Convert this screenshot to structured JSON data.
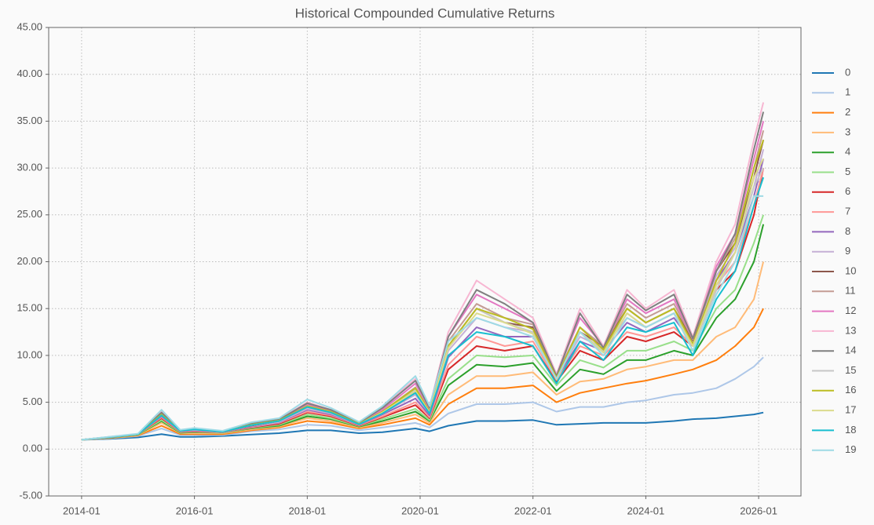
{
  "chart_data": {
    "type": "line",
    "title": "Historical Compounded Cumulative Returns",
    "x": [
      "2014-01",
      "2014-07",
      "2015-01",
      "2015-06",
      "2015-10",
      "2016-01",
      "2016-07",
      "2017-01",
      "2017-07",
      "2018-01",
      "2018-06",
      "2018-12",
      "2019-05",
      "2019-12",
      "2020-03",
      "2020-07",
      "2021-01",
      "2021-07",
      "2022-01",
      "2022-06",
      "2022-11",
      "2023-04",
      "2023-09",
      "2024-01",
      "2024-07",
      "2024-11",
      "2025-04",
      "2025-08",
      "2025-12",
      "2026-02"
    ],
    "series": [
      {
        "name": "0",
        "color": "#1f77b4",
        "values": [
          1.0,
          1.1,
          1.25,
          1.6,
          1.3,
          1.3,
          1.4,
          1.55,
          1.7,
          2.0,
          2.0,
          1.7,
          1.8,
          2.2,
          1.9,
          2.5,
          3.0,
          3.0,
          3.1,
          2.6,
          2.7,
          2.8,
          2.8,
          2.8,
          3.0,
          3.2,
          3.3,
          3.5,
          3.7,
          3.9
        ]
      },
      {
        "name": "1",
        "color": "#aec7e8",
        "values": [
          1.0,
          1.15,
          1.4,
          2.2,
          1.5,
          1.5,
          1.5,
          1.9,
          2.1,
          2.6,
          2.5,
          2.0,
          2.3,
          2.8,
          2.3,
          3.8,
          4.8,
          4.8,
          5.0,
          4.0,
          4.5,
          4.5,
          5.0,
          5.2,
          5.8,
          6.0,
          6.5,
          7.5,
          8.8,
          9.8
        ]
      },
      {
        "name": "2",
        "color": "#ff7f0e",
        "values": [
          1.0,
          1.18,
          1.45,
          2.5,
          1.6,
          1.6,
          1.6,
          2.0,
          2.3,
          3.0,
          2.8,
          2.2,
          2.6,
          3.3,
          2.6,
          4.8,
          6.5,
          6.5,
          6.8,
          5.0,
          6.0,
          6.5,
          7.0,
          7.3,
          8.0,
          8.5,
          9.5,
          11,
          13,
          15
        ]
      },
      {
        "name": "3",
        "color": "#ffbb78",
        "values": [
          1.0,
          1.2,
          1.5,
          2.8,
          1.7,
          1.7,
          1.7,
          2.1,
          2.4,
          3.3,
          3.0,
          2.3,
          2.8,
          3.7,
          2.8,
          5.8,
          7.8,
          7.8,
          8.2,
          5.8,
          7.2,
          7.5,
          8.5,
          8.8,
          9.5,
          9.5,
          12,
          13,
          16,
          20
        ]
      },
      {
        "name": "4",
        "color": "#2ca02c",
        "values": [
          1.0,
          1.22,
          1.55,
          3.0,
          1.75,
          1.8,
          1.75,
          2.2,
          2.5,
          3.5,
          3.2,
          2.4,
          3.0,
          4.0,
          3.0,
          6.8,
          9.0,
          8.8,
          9.2,
          6.2,
          8.5,
          8.0,
          9.5,
          9.5,
          10.5,
          10,
          14,
          16,
          20,
          24
        ]
      },
      {
        "name": "5",
        "color": "#98df8a",
        "values": [
          1.0,
          1.24,
          1.58,
          3.1,
          1.8,
          1.85,
          1.75,
          2.25,
          2.6,
          3.7,
          3.3,
          2.45,
          3.2,
          4.3,
          3.1,
          7.5,
          10,
          9.8,
          10,
          6.8,
          9.5,
          8.7,
          10.5,
          10.5,
          11.5,
          10.5,
          15,
          17,
          22,
          25
        ]
      },
      {
        "name": "6",
        "color": "#d62728",
        "values": [
          1.0,
          1.25,
          1.6,
          3.3,
          1.85,
          1.9,
          1.8,
          2.3,
          2.7,
          3.9,
          3.5,
          2.5,
          3.4,
          4.7,
          3.3,
          8.5,
          11,
          10.5,
          11,
          7.2,
          10.5,
          9.5,
          12,
          11.5,
          12.5,
          11,
          17,
          19,
          25,
          30
        ]
      },
      {
        "name": "7",
        "color": "#ff9896",
        "values": [
          1.0,
          1.26,
          1.6,
          3.4,
          1.87,
          1.95,
          1.8,
          2.35,
          2.8,
          4.0,
          3.6,
          2.55,
          3.5,
          5.0,
          3.4,
          9.0,
          12,
          11,
          11.5,
          7.4,
          11,
          10,
          12.5,
          12,
          13,
          11,
          17.5,
          20,
          26,
          30
        ]
      },
      {
        "name": "8",
        "color": "#9467bd",
        "values": [
          1.0,
          1.27,
          1.6,
          3.5,
          1.9,
          2.0,
          1.82,
          2.4,
          2.85,
          4.2,
          3.7,
          2.6,
          3.7,
          5.4,
          3.6,
          9.8,
          13,
          12,
          12,
          7.6,
          11.5,
          10.5,
          13.5,
          12.5,
          14,
          11.3,
          18,
          21,
          27,
          31
        ]
      },
      {
        "name": "9",
        "color": "#c5b0d5",
        "values": [
          1.0,
          1.27,
          1.6,
          3.6,
          1.92,
          2.05,
          1.84,
          2.45,
          2.9,
          4.3,
          3.8,
          2.62,
          3.8,
          5.8,
          3.8,
          10.5,
          14,
          13,
          12.5,
          7.7,
          12,
          10.8,
          14,
          13,
          14.5,
          11.5,
          18.5,
          21.5,
          28,
          32
        ]
      },
      {
        "name": "10",
        "color": "#8c564b",
        "values": [
          1.0,
          1.28,
          1.6,
          3.7,
          1.94,
          2.1,
          1.86,
          2.5,
          3.0,
          4.5,
          3.9,
          2.65,
          3.9,
          6.2,
          3.9,
          11,
          15,
          13.5,
          13,
          7.8,
          12.5,
          11,
          15,
          13.5,
          15,
          11.6,
          19,
          22,
          29,
          33
        ]
      },
      {
        "name": "11",
        "color": "#c49c94",
        "values": [
          1.0,
          1.29,
          1.6,
          3.8,
          1.96,
          2.12,
          1.87,
          2.55,
          3.05,
          4.6,
          4.0,
          2.7,
          4.0,
          6.6,
          4.1,
          11.5,
          15.5,
          14,
          13.3,
          7.9,
          13,
          11,
          15.5,
          14,
          15.5,
          11.7,
          19,
          22.5,
          30,
          34
        ]
      },
      {
        "name": "12",
        "color": "#e377c2",
        "values": [
          1.0,
          1.3,
          1.6,
          3.9,
          1.98,
          2.15,
          1.88,
          2.65,
          3.1,
          4.8,
          4.1,
          2.75,
          4.2,
          7.0,
          4.3,
          12,
          16.5,
          15,
          13.5,
          8,
          14,
          11,
          16,
          14.5,
          16,
          11.8,
          19.5,
          23,
          31,
          35
        ]
      },
      {
        "name": "13",
        "color": "#f7b6d2",
        "values": [
          1.0,
          1.3,
          1.6,
          4.0,
          2.0,
          2.2,
          1.9,
          2.8,
          3.2,
          5.0,
          4.2,
          2.8,
          4.5,
          7.5,
          4.5,
          12.5,
          18,
          16,
          14,
          8,
          15,
          11,
          17,
          15,
          17,
          12,
          20,
          24,
          33,
          37
        ]
      },
      {
        "name": "14",
        "color": "#7f7f7f",
        "values": [
          1.0,
          1.3,
          1.6,
          3.9,
          2.0,
          2.2,
          1.9,
          2.75,
          3.15,
          4.9,
          4.2,
          2.8,
          4.4,
          7.3,
          4.4,
          12,
          17,
          15.5,
          13.5,
          7.8,
          14.5,
          10.8,
          16.5,
          14.8,
          16.5,
          11.8,
          19,
          23,
          32,
          36
        ]
      },
      {
        "name": "15",
        "color": "#c7c7c7",
        "values": [
          1.0,
          1.28,
          1.6,
          3.6,
          1.95,
          2.1,
          1.85,
          2.55,
          3.0,
          4.5,
          3.9,
          2.65,
          3.9,
          6.3,
          3.9,
          11,
          15,
          13.5,
          12.5,
          7.5,
          12.5,
          10.5,
          14.5,
          13,
          14.5,
          11,
          17,
          21,
          28,
          30
        ]
      },
      {
        "name": "16",
        "color": "#bcbd22",
        "values": [
          1.0,
          1.29,
          1.6,
          3.7,
          1.96,
          2.12,
          1.86,
          2.6,
          3.05,
          4.6,
          4.0,
          2.7,
          4.0,
          6.5,
          4.0,
          11,
          15,
          14,
          12.8,
          7.6,
          13,
          10.6,
          15,
          13.5,
          15,
          11.2,
          18,
          22,
          30,
          33
        ]
      },
      {
        "name": "17",
        "color": "#dbdb8d",
        "values": [
          1.0,
          1.28,
          1.6,
          3.6,
          1.95,
          2.1,
          1.85,
          2.55,
          3.0,
          4.5,
          3.9,
          2.65,
          3.9,
          6.2,
          3.9,
          10.8,
          14.5,
          13.5,
          12.3,
          7.4,
          12.5,
          10.3,
          14.5,
          13,
          14.5,
          11,
          17.5,
          21,
          29,
          31
        ]
      },
      {
        "name": "18",
        "color": "#17becf",
        "values": [
          1.0,
          1.28,
          1.6,
          3.6,
          1.95,
          2.1,
          1.85,
          2.55,
          3.0,
          4.5,
          3.9,
          2.65,
          3.8,
          6.0,
          3.8,
          10,
          12.5,
          12,
          11,
          7.0,
          11.5,
          9.5,
          13,
          12.5,
          13.5,
          10,
          16,
          19,
          26,
          29
        ]
      },
      {
        "name": "19",
        "color": "#9edae5",
        "values": [
          1.0,
          1.32,
          1.65,
          4.2,
          2.05,
          2.25,
          1.95,
          2.85,
          3.3,
          5.3,
          4.4,
          2.9,
          4.6,
          7.8,
          4.6,
          11.5,
          14,
          13,
          12,
          7.5,
          12.5,
          10,
          14,
          13,
          14.5,
          10.5,
          16.5,
          20,
          27,
          27
        ]
      }
    ],
    "xlim": [
      "2013-06",
      "2026-10"
    ],
    "xticks": [
      "2014-01",
      "2016-01",
      "2018-01",
      "2020-01",
      "2022-01",
      "2024-01",
      "2026-01"
    ],
    "ylim": [
      -5,
      45
    ],
    "yticks": [
      {
        "value": -5,
        "label": "-5.00"
      },
      {
        "value": 0,
        "label": "0.00"
      },
      {
        "value": 5,
        "label": "5.00"
      },
      {
        "value": 10,
        "label": "10.00"
      },
      {
        "value": 15,
        "label": "15.00"
      },
      {
        "value": 20,
        "label": "20.00"
      },
      {
        "value": 25,
        "label": "25.00"
      },
      {
        "value": 30,
        "label": "30.00"
      },
      {
        "value": 35,
        "label": "35.00"
      },
      {
        "value": 40,
        "label": "40.00"
      },
      {
        "value": 45,
        "label": "45.00"
      }
    ],
    "grid": true,
    "legend": "right"
  }
}
